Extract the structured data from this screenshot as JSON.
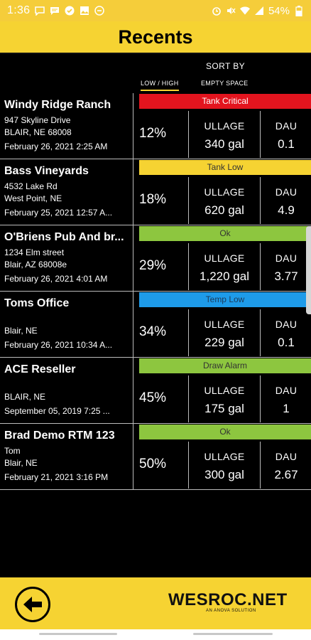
{
  "status_bar": {
    "time": "1:36",
    "battery": "54%",
    "left_icons": [
      "chat-icon",
      "message-icon",
      "check-circle-icon",
      "image-icon",
      "minus-circle-icon"
    ],
    "right_icons": [
      "alarm-icon",
      "mute-icon",
      "wifi-icon",
      "signal-icon",
      "battery-icon"
    ]
  },
  "header": {
    "title": "Recents"
  },
  "sort": {
    "label": "SORT BY",
    "options": [
      "LOW / HIGH",
      "EMPTY SPACE"
    ],
    "active": "LOW / HIGH"
  },
  "rows": [
    {
      "name": "Windy Ridge Ranch",
      "addr1": "947 Skyline Drive",
      "addr2": "BLAIR, NE 68008",
      "date": "February 26, 2021 2:25 AM",
      "status": "Tank Critical",
      "status_bg": "#e3141e",
      "status_fg": "#ffffff",
      "percent": "12%",
      "ullage_label": "ULLAGE",
      "ullage": "340 gal",
      "dau_label": "DAU",
      "dau": "0.1"
    },
    {
      "name": "Bass Vineyards",
      "addr1": "4532 Lake Rd",
      "addr2": "West Point, NE",
      "date": "February 25, 2021 12:57 A...",
      "status": "Tank Low",
      "status_bg": "#f6d332",
      "status_fg": "#333333",
      "percent": "18%",
      "ullage_label": "ULLAGE",
      "ullage": "620 gal",
      "dau_label": "DAU",
      "dau": "4.9"
    },
    {
      "name": "O'Briens Pub And br...",
      "addr1": "1234 Elm street",
      "addr2": "Blair, AZ 68008e",
      "date": "February 26, 2021 4:01 AM",
      "status": "Ok",
      "status_bg": "#8dc63f",
      "status_fg": "#333333",
      "percent": "29%",
      "ullage_label": "ULLAGE",
      "ullage": "1,220 gal",
      "dau_label": "DAU",
      "dau": "3.77"
    },
    {
      "name": "Toms Office",
      "addr1": "",
      "addr2": "Blair, NE",
      "date": "February 26, 2021 10:34 A...",
      "status": "Temp Low",
      "status_bg": "#1e9be9",
      "status_fg": "#1b3a5a",
      "percent": "34%",
      "ullage_label": "ULLAGE",
      "ullage": "229 gal",
      "dau_label": "DAU",
      "dau": "0.1"
    },
    {
      "name": "ACE Reseller",
      "addr1": "",
      "addr2": "BLAIR, NE",
      "date": "September 05, 2019 7:25 ...",
      "status": "Draw Alarm",
      "status_bg": "#8dc63f",
      "status_fg": "#333333",
      "percent": "45%",
      "ullage_label": "ULLAGE",
      "ullage": "175 gal",
      "dau_label": "DAU",
      "dau": "1"
    },
    {
      "name": "Brad Demo RTM 123",
      "addr1": "Tom",
      "addr2": "Blair, NE",
      "date": "February 21, 2021 3:16 PM",
      "status": "Ok",
      "status_bg": "#8dc63f",
      "status_fg": "#333333",
      "percent": "50%",
      "ullage_label": "ULLAGE",
      "ullage": "300 gal",
      "dau_label": "DAU",
      "dau": "2.67"
    }
  ],
  "footer": {
    "back_icon": "arrow-left-icon",
    "brand": "WESROC.NET",
    "brand_sub": "AN ANOVA SOLUTION"
  },
  "colors": {
    "accent": "#f6d332",
    "background": "#000000"
  }
}
